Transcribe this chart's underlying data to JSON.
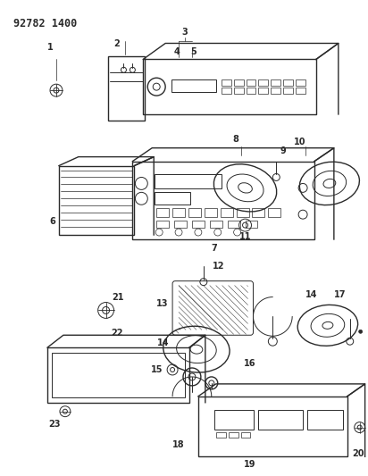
{
  "title": "92782 1400",
  "bg_color": "#ffffff",
  "fg_color": "#2a2a2a",
  "fig_width": 4.12,
  "fig_height": 5.33,
  "dpi": 100
}
